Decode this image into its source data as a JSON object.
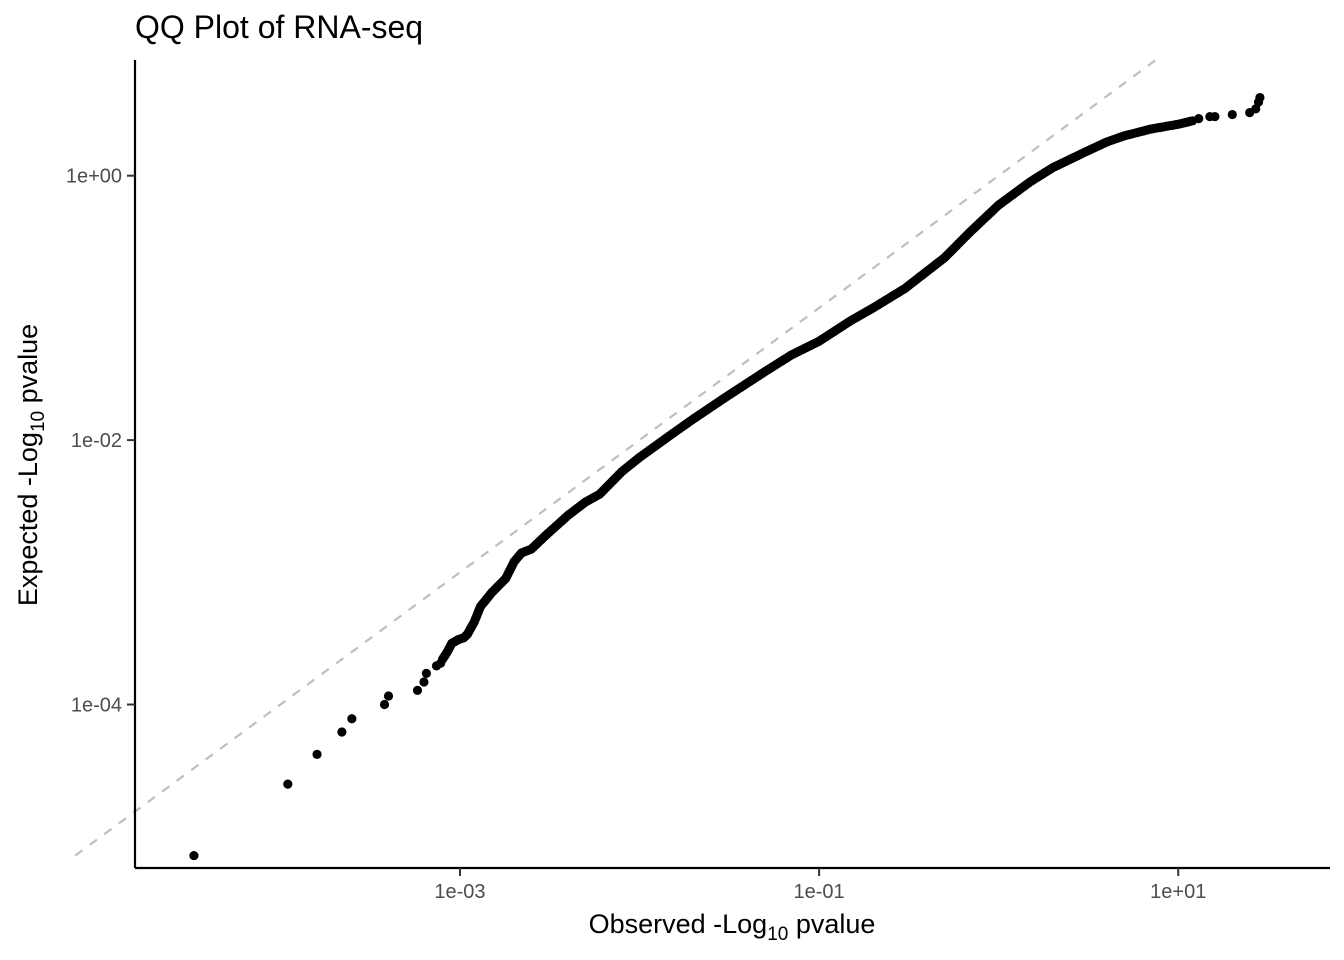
{
  "chart_data": {
    "type": "scatter",
    "title": "QQ Plot of RNA-seq",
    "xlabel": {
      "prefix": "Observed -Log",
      "sub": "10",
      "suffix": " pvalue"
    },
    "ylabel": {
      "prefix": "Expected -Log",
      "sub": "10",
      "suffix": " pvalue"
    },
    "x_scale": "log10",
    "y_scale": "log10",
    "xlim": [
      1.55e-05,
      70
    ],
    "ylim": [
      5.8e-06,
      7.5
    ],
    "x_ticks": [
      {
        "value": 0.001,
        "label": "1e-03"
      },
      {
        "value": 0.1,
        "label": "1e-01"
      },
      {
        "value": 10,
        "label": "1e+01"
      }
    ],
    "y_ticks": [
      {
        "value": 0.0001,
        "label": "1e-04"
      },
      {
        "value": 0.01,
        "label": "1e-02"
      },
      {
        "value": 1,
        "label": "1e+00"
      }
    ],
    "grid": false,
    "legend": "none",
    "reference_line": {
      "type": "y=x",
      "style": "dashed",
      "color": "#bebebe"
    },
    "point_color": "#000000",
    "isolated_points": [
      [
        3.3e-05,
        7.2e-06
      ],
      [
        0.00011,
        2.5e-05
      ],
      [
        0.00016,
        4.2e-05
      ],
      [
        0.00022,
        6.2e-05
      ],
      [
        0.00025,
        7.8e-05
      ],
      [
        0.00038,
        0.0001
      ],
      [
        0.0004,
        0.000116
      ],
      [
        0.00058,
        0.000128
      ],
      [
        0.00063,
        0.000148
      ],
      [
        0.00065,
        0.000172
      ],
      [
        0.00074,
        0.000196
      ],
      [
        0.00078,
        0.000205
      ]
    ],
    "curve_points": [
      [
        0.0008,
        0.00022
      ],
      [
        0.00085,
        0.00025
      ],
      [
        0.0009,
        0.00029
      ],
      [
        0.00098,
        0.00031
      ],
      [
        0.00105,
        0.00032
      ],
      [
        0.0011,
        0.00034
      ],
      [
        0.0012,
        0.00042
      ],
      [
        0.0013,
        0.00055
      ],
      [
        0.0015,
        0.0007
      ],
      [
        0.0018,
        0.0009
      ],
      [
        0.002,
        0.0012
      ],
      [
        0.0022,
        0.0014
      ],
      [
        0.0025,
        0.0015
      ],
      [
        0.003,
        0.0019
      ],
      [
        0.004,
        0.0027
      ],
      [
        0.005,
        0.0034
      ],
      [
        0.006,
        0.0039
      ],
      [
        0.008,
        0.0058
      ],
      [
        0.01,
        0.0074
      ],
      [
        0.015,
        0.011
      ],
      [
        0.02,
        0.0145
      ],
      [
        0.03,
        0.021
      ],
      [
        0.05,
        0.033
      ],
      [
        0.07,
        0.044
      ],
      [
        0.1,
        0.056
      ],
      [
        0.15,
        0.08
      ],
      [
        0.2,
        0.1
      ],
      [
        0.3,
        0.14
      ],
      [
        0.5,
        0.24
      ],
      [
        0.7,
        0.38
      ],
      [
        1.0,
        0.6
      ],
      [
        1.5,
        0.9
      ],
      [
        2.0,
        1.15
      ],
      [
        3.0,
        1.5
      ],
      [
        4.0,
        1.8
      ],
      [
        5.0,
        2.0
      ],
      [
        7.0,
        2.25
      ],
      [
        10.0,
        2.45
      ],
      [
        12.0,
        2.6
      ]
    ],
    "tail_points": [
      [
        13.0,
        2.7
      ],
      [
        15.0,
        2.8
      ],
      [
        16.0,
        2.8
      ],
      [
        20.0,
        2.9
      ],
      [
        25.0,
        3.0
      ],
      [
        27.0,
        3.2
      ],
      [
        28.0,
        3.6
      ],
      [
        28.5,
        3.9
      ]
    ]
  }
}
